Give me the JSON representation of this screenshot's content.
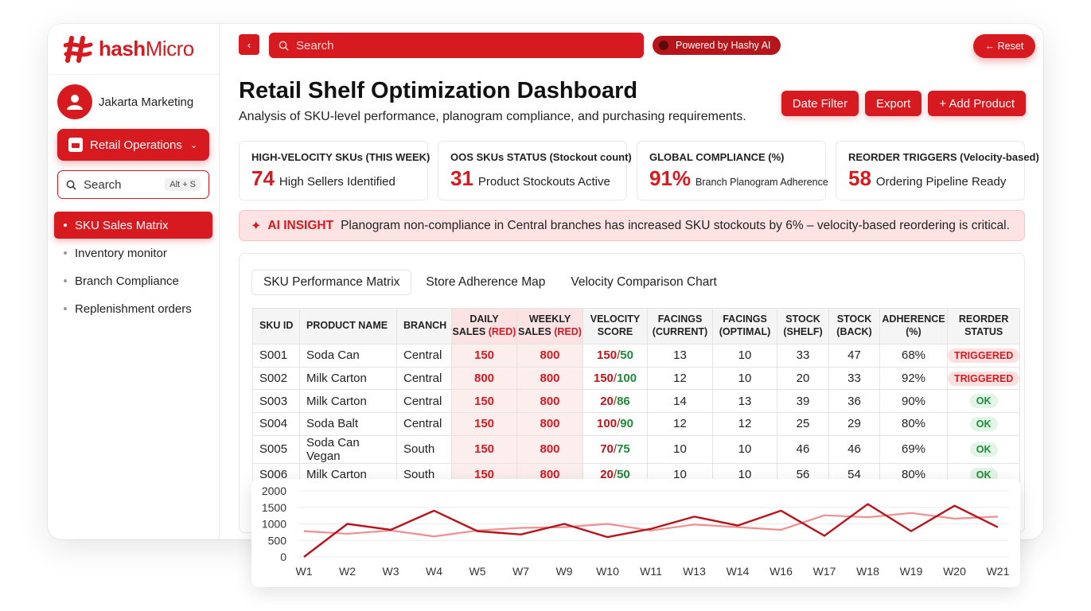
{
  "brand": {
    "name_bold": "hash",
    "name_light": "Micro"
  },
  "profile": {
    "name": "Jakarta Marketing"
  },
  "ops_button": {
    "label": "Retail Operations"
  },
  "side_search": {
    "placeholder": "Search",
    "shortcut": "Alt + S"
  },
  "nav": {
    "items": [
      {
        "label": "SKU Sales Matrix",
        "active": true
      },
      {
        "label": "Inventory monitor"
      },
      {
        "label": "Branch Compliance"
      },
      {
        "label": "Replenishment orders"
      }
    ]
  },
  "topbar": {
    "search_placeholder": "Search",
    "powered": "Powered by Hashy AI",
    "reset": "← Reset"
  },
  "page": {
    "title": "Retail Shelf Optimization Dashboard",
    "subtitle": "Analysis of SKU-level performance, planogram compliance, and purchasing requirements."
  },
  "actions": {
    "date_filter": "Date Filter",
    "export": "Export",
    "add_product": "+ Add Product"
  },
  "kpis": [
    {
      "label": "HIGH-VELOCITY SKUs (THIS WEEK)",
      "value": "74",
      "desc": "High Sellers Identified"
    },
    {
      "label": "OOS SKUs STATUS (Stockout count)",
      "value": "31",
      "desc": "Product Stockouts Active"
    },
    {
      "label": "GLOBAL COMPLIANCE (%)",
      "value": "91%",
      "desc": "Branch Planogram Adherence"
    },
    {
      "label": "REORDER TRIGGERS (Velocity-based)",
      "value": "58",
      "desc": "Ordering Pipeline Ready"
    }
  ],
  "insight": {
    "tag": "AI INSIGHT",
    "text": "Planogram non-compliance in Central branches has increased SKU stockouts by 6% – velocity-based reordering is critical."
  },
  "tabs": [
    "SKU Performance Matrix",
    "Store Adherence Map",
    "Velocity Comparison Chart"
  ],
  "table": {
    "headers": {
      "sku": "SKU ID",
      "product": "PRODUCT NAME",
      "branch": "BRANCH",
      "daily_1": "DAILY",
      "daily_2": "SALES",
      "daily_red": "(RED)",
      "weekly_1": "WEEKLY",
      "weekly_2": "SALES",
      "weekly_red": "(RED)",
      "velocity_1": "VELOCITY",
      "velocity_2": "SCORE",
      "facings_cur_1": "FACINGS",
      "facings_cur_2": "(CURRENT)",
      "facings_opt_1": "FACINGS",
      "facings_opt_2": "(OPTIMAL)",
      "shelf_1": "STOCK",
      "shelf_2": "(SHELF)",
      "back_1": "STOCK",
      "back_2": "(BACK)",
      "adherence_1": "ADHERENCE",
      "adherence_2": "(%)",
      "reorder_1": "REORDER",
      "reorder_2": "STATUS"
    },
    "rows": [
      {
        "sku": "S001",
        "product": "Soda Can",
        "branch": "Central",
        "daily": "150",
        "weekly": "800",
        "vel_a": "150",
        "vel_b": "50",
        "fcur": "13",
        "fopt": "10",
        "shelf": "33",
        "back": "47",
        "adh": "68%",
        "status": "TRIGGERED"
      },
      {
        "sku": "S002",
        "product": "Milk Carton",
        "branch": "Central",
        "daily": "800",
        "weekly": "800",
        "vel_a": "150",
        "vel_b": "100",
        "fcur": "12",
        "fopt": "10",
        "shelf": "20",
        "back": "33",
        "adh": "92%",
        "status": "TRIGGERED"
      },
      {
        "sku": "S003",
        "product": "Milk Carton",
        "branch": "Central",
        "daily": "150",
        "weekly": "800",
        "vel_a": "20",
        "vel_b": "86",
        "fcur": "14",
        "fopt": "13",
        "shelf": "39",
        "back": "36",
        "adh": "90%",
        "status": "OK"
      },
      {
        "sku": "S004",
        "product": "Soda Balt",
        "branch": "Central",
        "daily": "150",
        "weekly": "800",
        "vel_a": "100",
        "vel_b": "90",
        "fcur": "12",
        "fopt": "12",
        "shelf": "25",
        "back": "29",
        "adh": "80%",
        "status": "OK"
      },
      {
        "sku": "S005",
        "product": "Soda Can Vegan",
        "branch": "South",
        "daily": "150",
        "weekly": "800",
        "vel_a": "70",
        "vel_b": "75",
        "fcur": "10",
        "fopt": "10",
        "shelf": "46",
        "back": "46",
        "adh": "69%",
        "status": "OK"
      },
      {
        "sku": "S006",
        "product": "Milk Carton",
        "branch": "South",
        "daily": "150",
        "weekly": "800",
        "vel_a": "20",
        "vel_b": "50",
        "fcur": "10",
        "fopt": "10",
        "shelf": "56",
        "back": "54",
        "adh": "80%",
        "status": "OK"
      }
    ]
  },
  "colors": {
    "accent": "#d71920",
    "series_dark": "#b5151b",
    "series_light": "#ef8f8f",
    "ok_green": "#1f8a3a"
  },
  "chart_data": {
    "type": "line",
    "categories": [
      "W1",
      "W2",
      "W3",
      "W4",
      "W5",
      "W7",
      "W9",
      "W10",
      "W11",
      "W13",
      "W14",
      "W16",
      "W17",
      "W18",
      "W19",
      "W20",
      "W21"
    ],
    "series": [
      {
        "values": [
          0,
          1000,
          820,
          1400,
          780,
          680,
          1000,
          600,
          850,
          1220,
          950,
          1400,
          640,
          1600,
          780,
          1550,
          900
        ]
      },
      {
        "values": [
          780,
          700,
          800,
          620,
          800,
          880,
          900,
          1000,
          800,
          980,
          900,
          820,
          1260,
          1200,
          1330,
          1160,
          1220
        ]
      }
    ],
    "ylim": [
      0,
      2000
    ],
    "yticks": [
      2000,
      1500,
      1000,
      500,
      0
    ],
    "grid": true
  }
}
